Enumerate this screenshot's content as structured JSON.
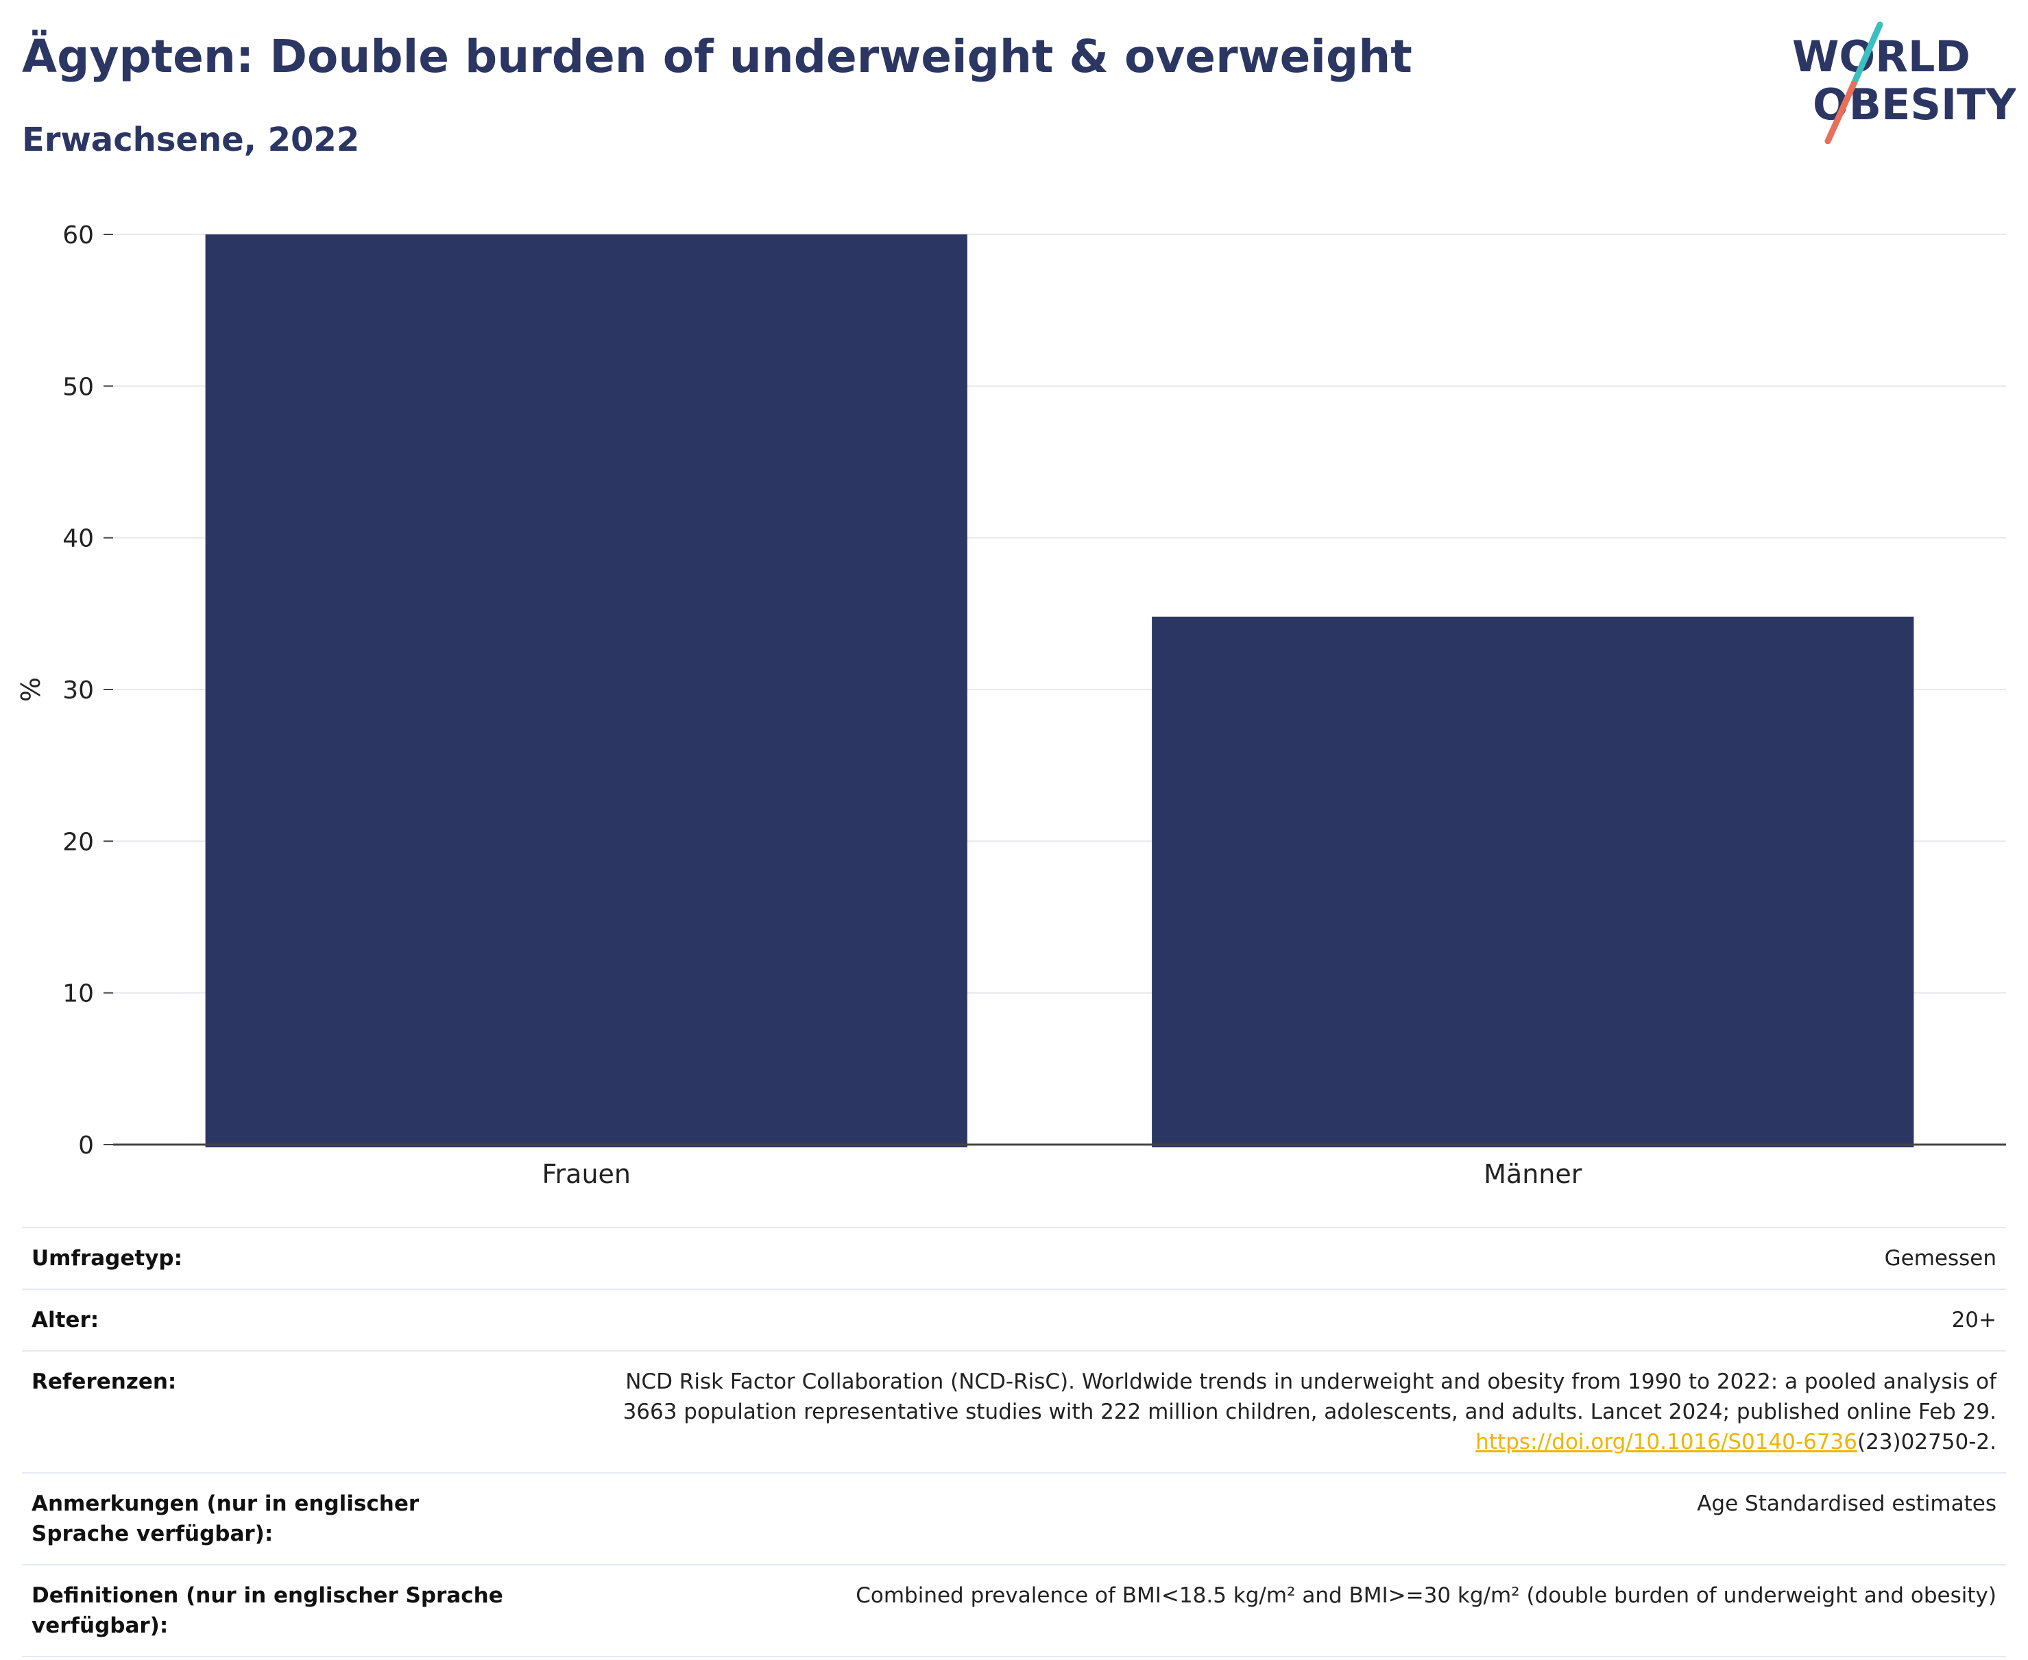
{
  "header": {
    "title": "Ägypten: Double burden of underweight & overweight",
    "subtitle": "Erwachsene, 2022"
  },
  "logo": {
    "line1": "WORLD",
    "line2": "OBESITY",
    "colors": {
      "text": "#2b3663",
      "slash_top": "#3bbfbf",
      "slash_bottom": "#e8705a"
    }
  },
  "chart_data": {
    "type": "bar",
    "categories": [
      "Frauen",
      "Männer"
    ],
    "values": [
      60.1,
      34.8
    ],
    "title": "",
    "xlabel": "",
    "ylabel": "%",
    "ylim": [
      0,
      60
    ],
    "yticks": [
      0,
      10,
      20,
      30,
      40,
      50,
      60
    ],
    "grid": true,
    "bar_color": "#2b3663"
  },
  "meta": {
    "rows": [
      {
        "label": "Umfragetyp:",
        "value": "Gemessen"
      },
      {
        "label": "Alter:",
        "value": "20+"
      },
      {
        "label": "Referenzen:",
        "value_line1": "NCD Risk Factor Collaboration (NCD-RisC). Worldwide trends in underweight and obesity from 1990 to 2022: a pooled analysis of",
        "value_line2": "3663 population representative studies with 222 million children, adolescents, and adults. Lancet 2024; published online Feb 29.",
        "link": "https://doi.org/10.1016/S0140-6736",
        "link_suffix": "(23)02750-2."
      },
      {
        "label": "Anmerkungen (nur in englischer Sprache verfügbar):",
        "value": "Age Standardised estimates"
      },
      {
        "label": "Definitionen (nur in englischer Sprache verfügbar):",
        "value": "Combined prevalence of BMI<18.5 kg/m² and BMI>=30 kg/m² (double burden of underweight and obesity)"
      }
    ]
  }
}
